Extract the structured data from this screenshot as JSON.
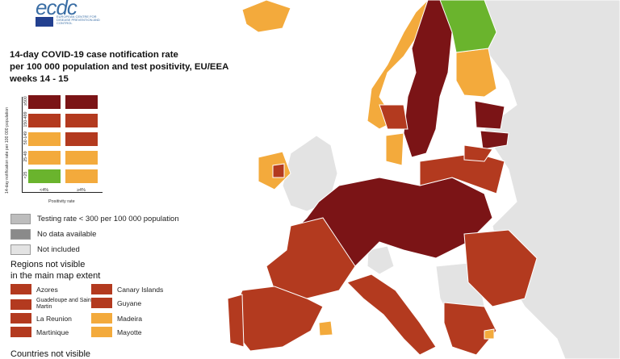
{
  "logo": {
    "text": "ecdc",
    "subtitle": "EUROPEAN CENTRE FOR DISEASE PREVENTION AND CONTROL"
  },
  "title": [
    "14-day COVID-19 case notification rate",
    "per 100 000 population and test positivity, EU/EEA",
    "weeks 14 - 15"
  ],
  "colors": {
    "dark_red": "#7b1416",
    "red": "#b33a1f",
    "orange": "#f3aa3c",
    "green": "#6ab42d",
    "grey_testing": "#bdbdbd",
    "grey_nodata": "#8a8a8a",
    "not_included": "#e3e3e3",
    "sea": "#ffffff"
  },
  "matrix": {
    "y_axis_title": "14-day notification rate per 100 000 population",
    "x_axis_title": "Positivity rate",
    "rows": [
      "≥500",
      "150-499",
      "50-149",
      "25-49",
      "<25"
    ],
    "cols": [
      "<4%",
      "≥4%"
    ],
    "cells": [
      [
        "dark_red",
        "dark_red"
      ],
      [
        "red",
        "red"
      ],
      [
        "orange",
        "red"
      ],
      [
        "orange",
        "orange"
      ],
      [
        "green",
        "orange"
      ]
    ]
  },
  "legend": [
    {
      "label": "Testing rate < 300 per 100 000 population",
      "color": "grey_testing"
    },
    {
      "label": "No data available",
      "color": "grey_nodata"
    },
    {
      "label": "Not included",
      "color": "not_included"
    }
  ],
  "regions_title": [
    "Regions not visible",
    "in the main map extent"
  ],
  "regions": [
    {
      "label": "Azores",
      "color": "red"
    },
    {
      "label": "Canary Islands",
      "color": "red"
    },
    {
      "label": "Guadeloupe and Saint Martin",
      "color": "red"
    },
    {
      "label": "Guyane",
      "color": "red"
    },
    {
      "label": "La Reunion",
      "color": "red"
    },
    {
      "label": "Madeira",
      "color": "orange"
    },
    {
      "label": "Martinique",
      "color": "red"
    },
    {
      "label": "Mayotte",
      "color": "orange"
    }
  ],
  "countries_title": "Countries not visible"
}
